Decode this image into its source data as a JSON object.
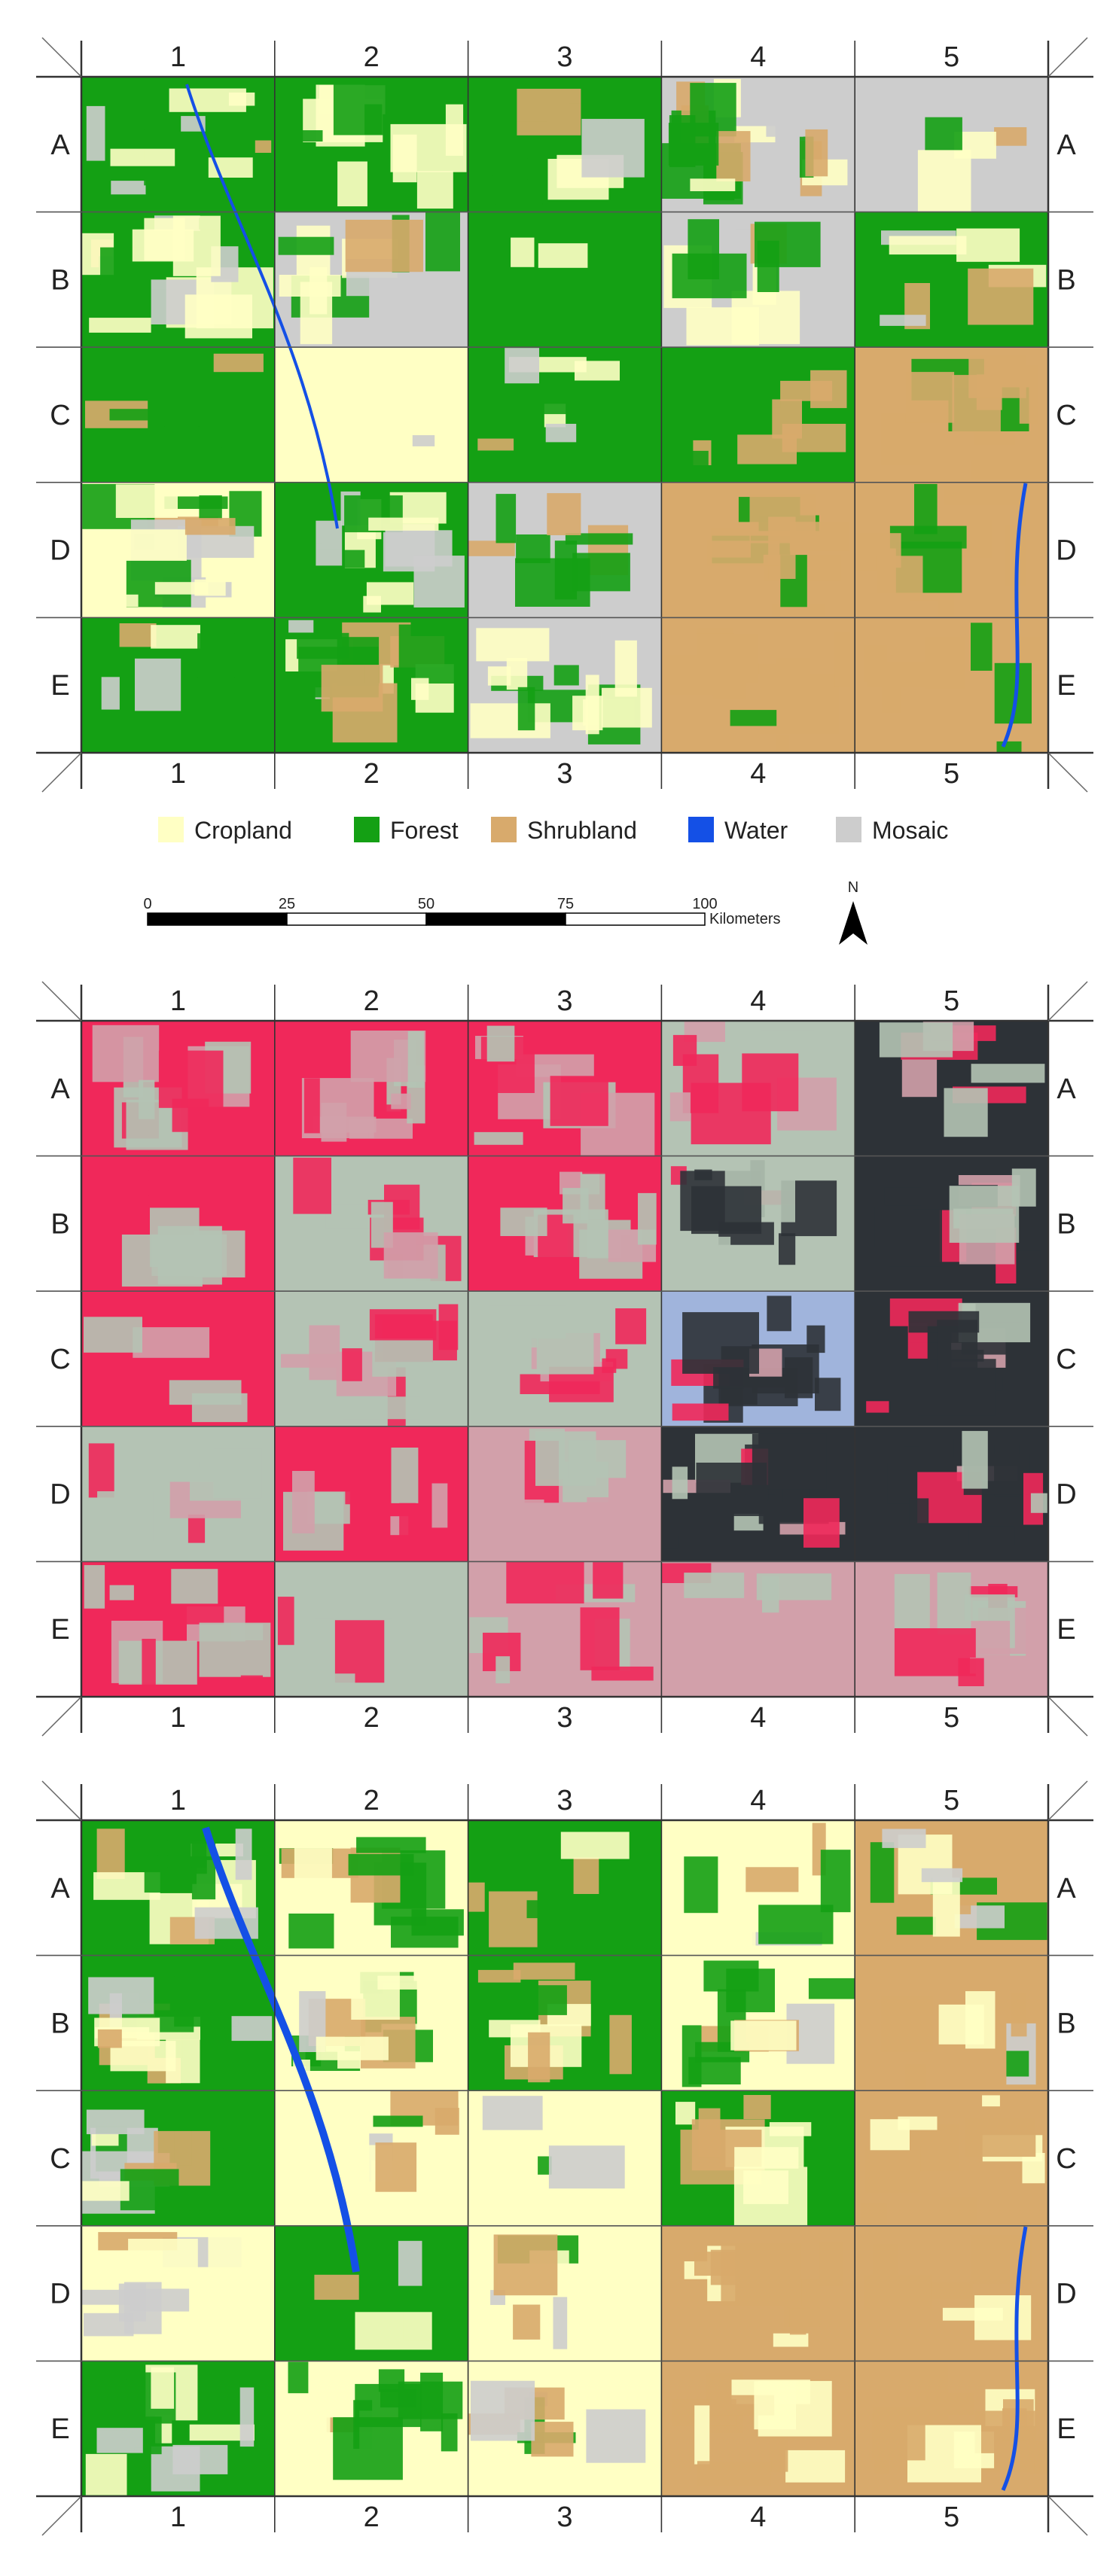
{
  "colors": {
    "cropland": "#ffffc4",
    "forest": "#14a014",
    "shrubland": "#d8aa6c",
    "water": "#1450e6",
    "mosaic": "#cdcdcd",
    "imagery_red": "#f0285a",
    "imagery_pale": "#b4c3b4",
    "imagery_burn": "#2d3237",
    "imagery_pink": "#d2a0aa",
    "imagery_smoke": "#a0b4dc"
  },
  "grid": {
    "columns": [
      "1",
      "2",
      "3",
      "4",
      "5"
    ],
    "rows": [
      "A",
      "B",
      "C",
      "D",
      "E"
    ]
  },
  "panels": [
    {
      "kind": "classified-map-1",
      "blocks": [
        [
          "forest",
          "forest",
          "forest",
          "mosaic",
          "mosaic"
        ],
        [
          "forest",
          "mosaic",
          "forest",
          "mosaic",
          "forest"
        ],
        [
          "forest",
          "cropland",
          "forest",
          "forest",
          "shrubland"
        ],
        [
          "cropland",
          "forest",
          "mosaic",
          "shrubland",
          "shrubland"
        ],
        [
          "forest",
          "forest",
          "mosaic",
          "shrubland",
          "shrubland"
        ]
      ]
    },
    {
      "kind": "false-color-imagery",
      "blocks": [
        [
          "imagery_red",
          "imagery_red",
          "imagery_red",
          "imagery_pale",
          "imagery_burn"
        ],
        [
          "imagery_red",
          "imagery_pale",
          "imagery_red",
          "imagery_pale",
          "imagery_burn"
        ],
        [
          "imagery_red",
          "imagery_pale",
          "imagery_pale",
          "imagery_smoke",
          "imagery_burn"
        ],
        [
          "imagery_pale",
          "imagery_red",
          "imagery_pink",
          "imagery_burn",
          "imagery_burn"
        ],
        [
          "imagery_red",
          "imagery_pale",
          "imagery_pink",
          "imagery_pink",
          "imagery_pink"
        ]
      ]
    },
    {
      "kind": "classified-map-2",
      "blocks": [
        [
          "forest",
          "cropland",
          "forest",
          "cropland",
          "shrubland"
        ],
        [
          "forest",
          "cropland",
          "forest",
          "cropland",
          "shrubland"
        ],
        [
          "forest",
          "cropland",
          "cropland",
          "forest",
          "shrubland"
        ],
        [
          "cropland",
          "forest",
          "cropland",
          "shrubland",
          "shrubland"
        ],
        [
          "forest",
          "cropland",
          "cropland",
          "shrubland",
          "shrubland"
        ]
      ]
    }
  ],
  "legend": [
    {
      "label": "Cropland",
      "color_key": "cropland"
    },
    {
      "label": "Forest",
      "color_key": "forest"
    },
    {
      "label": "Shrubland",
      "color_key": "shrubland"
    },
    {
      "label": "Water",
      "color_key": "water"
    },
    {
      "label": "Mosaic",
      "color_key": "mosaic"
    }
  ],
  "scale_bar": {
    "ticks": [
      "0",
      "25",
      "50",
      "75",
      "100"
    ],
    "unit": "Kilometers"
  },
  "north_arrow": {
    "label": "N"
  }
}
